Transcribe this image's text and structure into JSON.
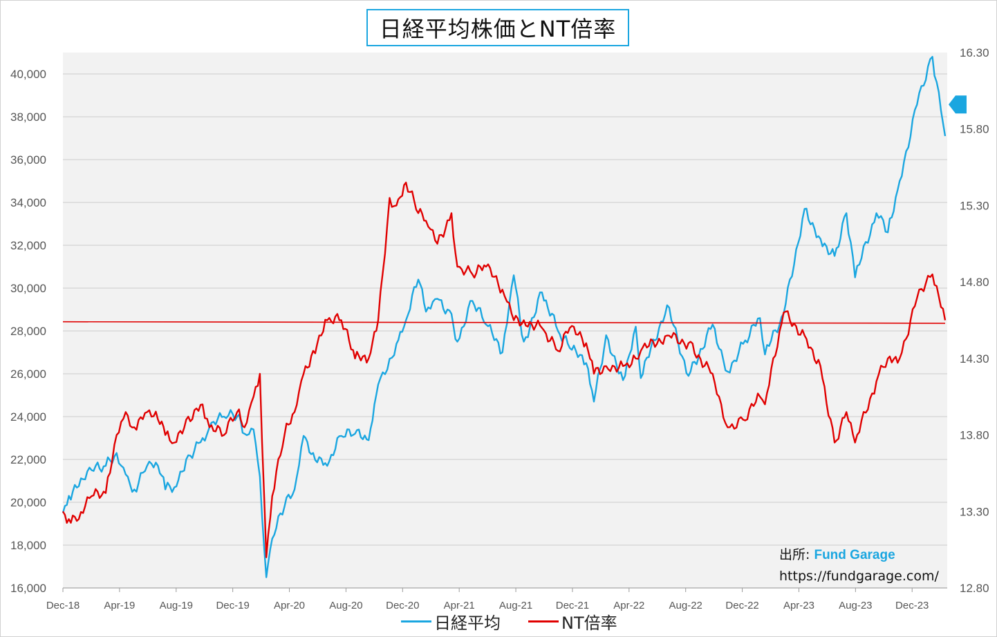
{
  "title": "日経平均株価とNT倍率",
  "source": {
    "label": "出所",
    "sep": ":",
    "brand": "Fund Garage",
    "url": "https://fundgarage.com/"
  },
  "legend": [
    {
      "name": "日経平均",
      "color": "#1aa6e0"
    },
    {
      "name": "NT倍率",
      "color": "#e00000"
    }
  ],
  "chart_data": {
    "type": "line",
    "x_ticks": [
      "Dec-18",
      "Apr-19",
      "Aug-19",
      "Dec-19",
      "Apr-20",
      "Aug-20",
      "Dec-20",
      "Apr-21",
      "Aug-21",
      "Dec-21",
      "Apr-22",
      "Aug-22",
      "Dec-22",
      "Apr-23",
      "Aug-23",
      "Dec-23"
    ],
    "y_left": {
      "ylim": [
        16000,
        41000
      ],
      "ticks": [
        16000,
        18000,
        20000,
        22000,
        24000,
        26000,
        28000,
        30000,
        32000,
        34000,
        36000,
        38000,
        40000
      ],
      "tick_labels": [
        "16,000",
        "18,000",
        "20,000",
        "22,000",
        "24,000",
        "26,000",
        "28,000",
        "30,000",
        "32,000",
        "34,000",
        "36,000",
        "38,000",
        "40,000"
      ]
    },
    "y_right": {
      "ylim": [
        12.8,
        16.3
      ],
      "ticks": [
        12.8,
        13.3,
        13.8,
        14.3,
        14.8,
        15.3,
        15.8,
        16.3
      ],
      "tick_labels": [
        "12.80",
        "13.30",
        "13.80",
        "14.30",
        "14.80",
        "15.30",
        "15.80",
        "16.30"
      ]
    },
    "grid": true,
    "series": [
      {
        "name": "日経平均",
        "axis": "left",
        "color": "#1aa6e0",
        "points": [
          [
            "2018-12-28",
            19500
          ],
          [
            "2019-01-10",
            20300
          ],
          [
            "2019-02-01",
            20750
          ],
          [
            "2019-03-01",
            21500
          ],
          [
            "2019-04-01",
            21700
          ],
          [
            "2019-04-25",
            22300
          ],
          [
            "2019-05-15",
            21300
          ],
          [
            "2019-06-03",
            20600
          ],
          [
            "2019-07-01",
            21700
          ],
          [
            "2019-07-25",
            21700
          ],
          [
            "2019-08-10",
            20600
          ],
          [
            "2019-08-30",
            20700
          ],
          [
            "2019-09-25",
            22000
          ],
          [
            "2019-10-31",
            23000
          ],
          [
            "2019-11-15",
            23500
          ],
          [
            "2019-12-17",
            24000
          ],
          [
            "2020-01-15",
            24000
          ],
          [
            "2020-01-31",
            23200
          ],
          [
            "2020-02-20",
            23400
          ],
          [
            "2020-03-05",
            21200
          ],
          [
            "2020-03-19",
            16500
          ],
          [
            "2020-04-01",
            18300
          ],
          [
            "2020-04-28",
            19800
          ],
          [
            "2020-05-20",
            20600
          ],
          [
            "2020-06-09",
            23100
          ],
          [
            "2020-06-30",
            22300
          ],
          [
            "2020-07-31",
            21700
          ],
          [
            "2020-08-31",
            23100
          ],
          [
            "2020-09-30",
            23200
          ],
          [
            "2020-10-30",
            22900
          ],
          [
            "2020-11-20",
            25500
          ],
          [
            "2020-12-15",
            26700
          ],
          [
            "2020-12-30",
            27400
          ],
          [
            "2021-01-20",
            28500
          ],
          [
            "2021-02-16",
            30400
          ],
          [
            "2021-03-05",
            28900
          ],
          [
            "2021-03-30",
            29500
          ],
          [
            "2021-04-30",
            28800
          ],
          [
            "2021-05-13",
            27500
          ],
          [
            "2021-06-15",
            29400
          ],
          [
            "2021-07-15",
            28300
          ],
          [
            "2021-08-20",
            27000
          ],
          [
            "2021-09-14",
            30600
          ],
          [
            "2021-10-06",
            27500
          ],
          [
            "2021-11-15",
            29800
          ],
          [
            "2021-12-20",
            28000
          ],
          [
            "2022-01-15",
            27200
          ],
          [
            "2022-02-20",
            26500
          ],
          [
            "2022-03-09",
            24700
          ],
          [
            "2022-04-05",
            27800
          ],
          [
            "2022-05-12",
            25700
          ],
          [
            "2022-06-09",
            28200
          ],
          [
            "2022-06-20",
            25800
          ],
          [
            "2022-08-17",
            29200
          ],
          [
            "2022-10-03",
            25900
          ],
          [
            "2022-11-25",
            28300
          ],
          [
            "2022-12-28",
            26100
          ],
          [
            "2023-01-31",
            27400
          ],
          [
            "2023-03-09",
            28600
          ],
          [
            "2023-03-20",
            26900
          ],
          [
            "2023-04-30",
            28800
          ],
          [
            "2023-06-15",
            33700
          ],
          [
            "2023-07-20",
            32300
          ],
          [
            "2023-08-20",
            31500
          ],
          [
            "2023-09-15",
            33500
          ],
          [
            "2023-10-04",
            30500
          ],
          [
            "2023-11-20",
            33500
          ],
          [
            "2023-12-15",
            32600
          ],
          [
            "2024-01-10",
            35000
          ],
          [
            "2024-02-22",
            39100
          ],
          [
            "2024-03-22",
            40800
          ],
          [
            "2024-04-19",
            37100
          ]
        ]
      },
      {
        "name": "NT倍率",
        "axis": "right",
        "color": "#e00000",
        "points": [
          [
            "2018-12-28",
            13.3
          ],
          [
            "2019-01-10",
            13.25
          ],
          [
            "2019-02-01",
            13.25
          ],
          [
            "2019-03-01",
            13.4
          ],
          [
            "2019-04-01",
            13.42
          ],
          [
            "2019-04-25",
            13.8
          ],
          [
            "2019-05-15",
            13.95
          ],
          [
            "2019-06-03",
            13.85
          ],
          [
            "2019-07-01",
            13.95
          ],
          [
            "2019-07-25",
            13.9
          ],
          [
            "2019-08-10",
            13.8
          ],
          [
            "2019-08-30",
            13.75
          ],
          [
            "2019-09-25",
            13.9
          ],
          [
            "2019-10-31",
            14.0
          ],
          [
            "2019-11-15",
            13.85
          ],
          [
            "2019-12-17",
            13.8
          ],
          [
            "2020-01-15",
            13.95
          ],
          [
            "2020-01-31",
            13.85
          ],
          [
            "2020-02-20",
            14.05
          ],
          [
            "2020-03-05",
            14.2
          ],
          [
            "2020-03-19",
            13.0
          ],
          [
            "2020-04-01",
            13.4
          ],
          [
            "2020-04-28",
            13.8
          ],
          [
            "2020-05-20",
            13.95
          ],
          [
            "2020-06-09",
            14.2
          ],
          [
            "2020-06-30",
            14.35
          ],
          [
            "2020-07-31",
            14.55
          ],
          [
            "2020-08-31",
            14.55
          ],
          [
            "2020-09-30",
            14.3
          ],
          [
            "2020-10-30",
            14.3
          ],
          [
            "2020-11-20",
            14.55
          ],
          [
            "2020-12-15",
            15.35
          ],
          [
            "2020-12-30",
            15.3
          ],
          [
            "2021-01-20",
            15.45
          ],
          [
            "2021-02-16",
            15.25
          ],
          [
            "2021-03-05",
            15.2
          ],
          [
            "2021-03-30",
            15.05
          ],
          [
            "2021-04-30",
            15.25
          ],
          [
            "2021-05-13",
            14.9
          ],
          [
            "2021-06-15",
            14.85
          ],
          [
            "2021-07-15",
            14.9
          ],
          [
            "2021-08-20",
            14.75
          ],
          [
            "2021-09-14",
            14.55
          ],
          [
            "2021-10-06",
            14.55
          ],
          [
            "2021-11-15",
            14.5
          ],
          [
            "2021-12-20",
            14.35
          ],
          [
            "2022-01-15",
            14.5
          ],
          [
            "2022-02-20",
            14.4
          ],
          [
            "2022-03-09",
            14.2
          ],
          [
            "2022-04-05",
            14.25
          ],
          [
            "2022-05-12",
            14.25
          ],
          [
            "2022-06-09",
            14.3
          ],
          [
            "2022-06-20",
            14.35
          ],
          [
            "2022-08-17",
            14.45
          ],
          [
            "2022-10-03",
            14.4
          ],
          [
            "2022-11-25",
            14.2
          ],
          [
            "2022-12-28",
            13.85
          ],
          [
            "2023-01-31",
            13.9
          ],
          [
            "2023-03-09",
            14.05
          ],
          [
            "2023-03-20",
            14.0
          ],
          [
            "2023-04-30",
            14.6
          ],
          [
            "2023-06-15",
            14.45
          ],
          [
            "2023-07-20",
            14.25
          ],
          [
            "2023-08-20",
            13.75
          ],
          [
            "2023-09-15",
            13.95
          ],
          [
            "2023-10-04",
            13.75
          ],
          [
            "2023-11-20",
            14.15
          ],
          [
            "2023-12-15",
            14.3
          ],
          [
            "2024-01-10",
            14.3
          ],
          [
            "2024-02-22",
            14.75
          ],
          [
            "2024-03-22",
            14.85
          ],
          [
            "2024-04-19",
            14.55
          ]
        ]
      },
      {
        "axis": "right",
        "color": "#e00000",
        "points": [
          [
            "2018-12-28",
            14.54
          ],
          [
            "2024-04-19",
            14.53
          ]
        ]
      }
    ],
    "latest_marker": {
      "axis": "right",
      "value": 15.96,
      "color": "#1aa6e0"
    }
  }
}
